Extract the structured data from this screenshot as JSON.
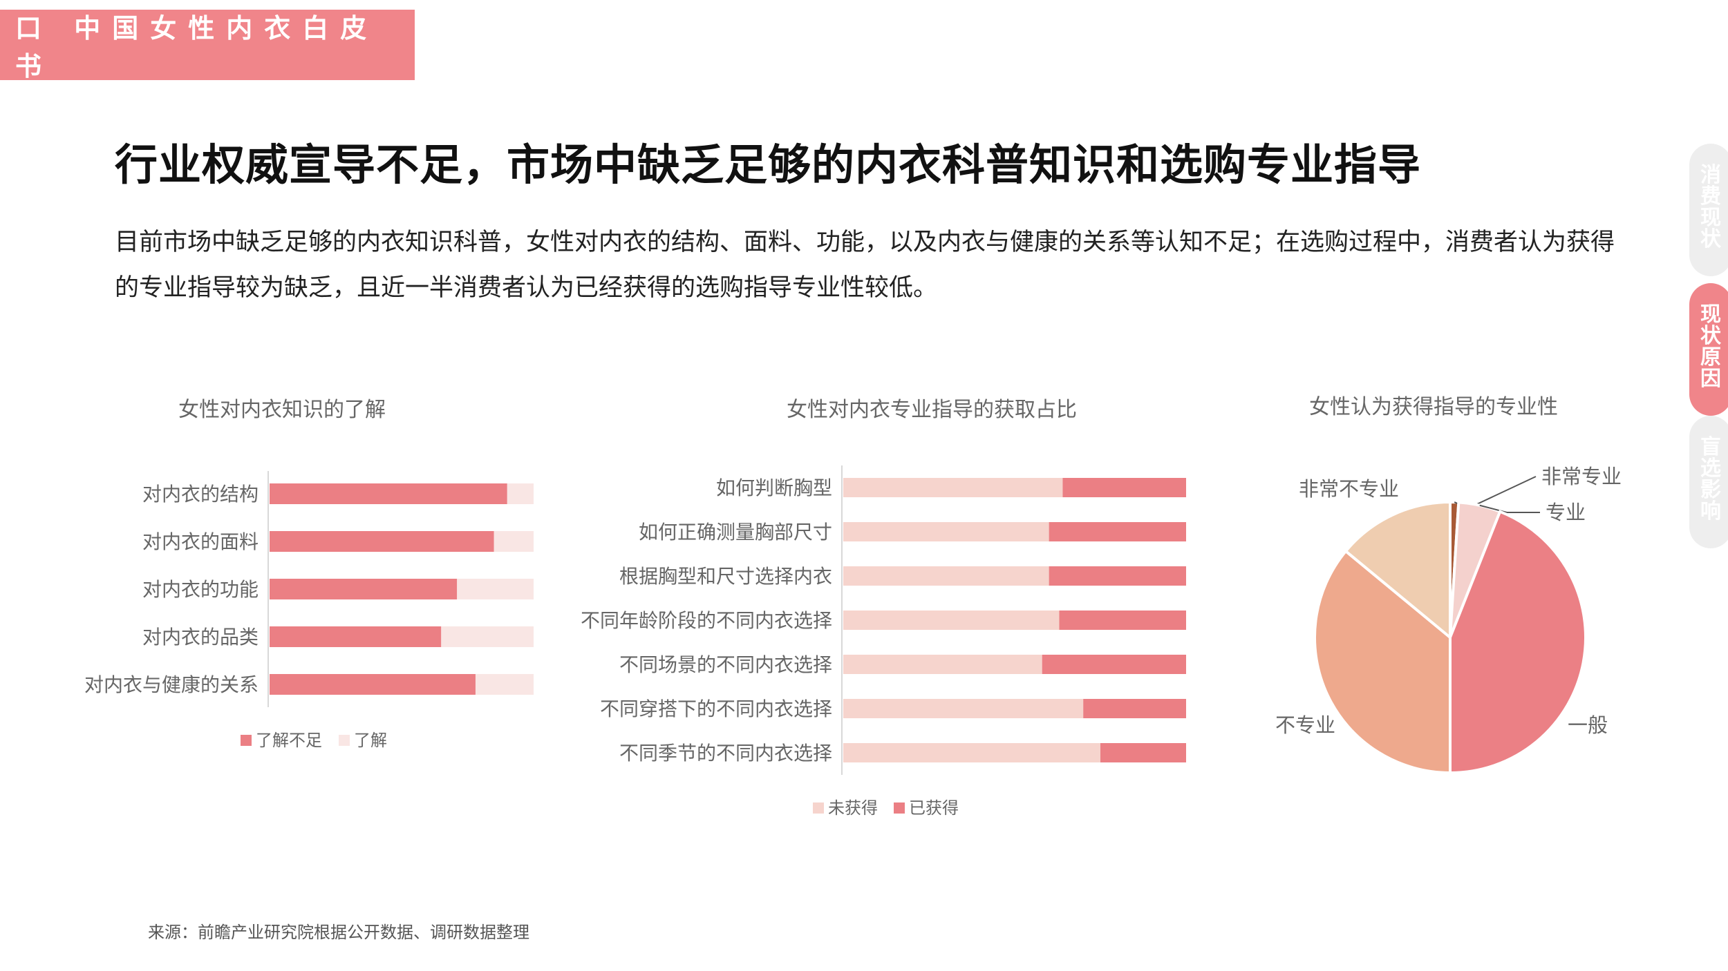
{
  "header": {
    "badge": "口 中国女性内衣白皮书",
    "headline": "行业权威宣导不足，市场中缺乏足够的内衣科普知识和选购专业指导",
    "intro": "目前市场中缺乏足够的内衣知识科普，女性对内衣的结构、面料、功能，以及内衣与健康的关系等认知不足；在选购过程中，消费者认为获得的专业指导较为缺乏，且近一半消费者认为已经获得的选购指导专业性较低。"
  },
  "side_nav": [
    {
      "label": "消费现状",
      "active": false
    },
    {
      "label": "现状原因",
      "active": true
    },
    {
      "label": "盲选影响",
      "active": false
    }
  ],
  "colors": {
    "accent": "#f0858a",
    "bar_dark": "#eb7f84",
    "bar_light": "#f9e6e4",
    "bar_light2": "#f6d4cd"
  },
  "chart_data": [
    {
      "type": "bar",
      "orientation": "horizontal",
      "stacked": true,
      "title": "女性对内衣知识的了解",
      "categories": [
        "对内衣的结构",
        "对内衣的面料",
        "对内衣的功能",
        "对内衣的品类",
        "对内衣与健康的关系"
      ],
      "series": [
        {
          "name": "了解不足",
          "values": [
            90,
            85,
            71,
            65,
            78
          ],
          "color": "#eb7f84"
        },
        {
          "name": "了解",
          "values": [
            10,
            15,
            29,
            35,
            22
          ],
          "color": "#f9e6e4"
        }
      ],
      "xlim": [
        0,
        100
      ],
      "legend": "bottom"
    },
    {
      "type": "bar",
      "orientation": "horizontal",
      "stacked": true,
      "title": "女性对内衣专业指导的获取占比",
      "categories": [
        "如何判断胸型",
        "如何正确测量胸部尺寸",
        "根据胸型和尺寸选择内衣",
        "不同年龄阶段的不同内衣选择",
        "不同场景的不同内衣选择",
        "不同穿搭下的不同内衣选择",
        "不同季节的不同内衣选择"
      ],
      "series": [
        {
          "name": "未获得",
          "values": [
            64,
            60,
            60,
            63,
            58,
            70,
            75
          ],
          "color": "#f6d4cd"
        },
        {
          "name": "已获得",
          "values": [
            36,
            40,
            40,
            37,
            42,
            30,
            25
          ],
          "color": "#eb7f84"
        }
      ],
      "xlim": [
        0,
        100
      ],
      "legend": "bottom"
    },
    {
      "type": "pie",
      "title": "女性认为获得指导的专业性",
      "slices": [
        {
          "label": "非常专业",
          "value": 1,
          "color": "#a85a36"
        },
        {
          "label": "专业",
          "value": 5,
          "color": "#f4d1cd"
        },
        {
          "label": "一般",
          "value": 44,
          "color": "#eb8085"
        },
        {
          "label": "不专业",
          "value": 36,
          "color": "#eea98d"
        },
        {
          "label": "非常不专业",
          "value": 14,
          "color": "#efcdb0"
        }
      ]
    }
  ],
  "footer": {
    "source": "来源：前瞻产业研究院根据公开数据、调研数据整理"
  }
}
